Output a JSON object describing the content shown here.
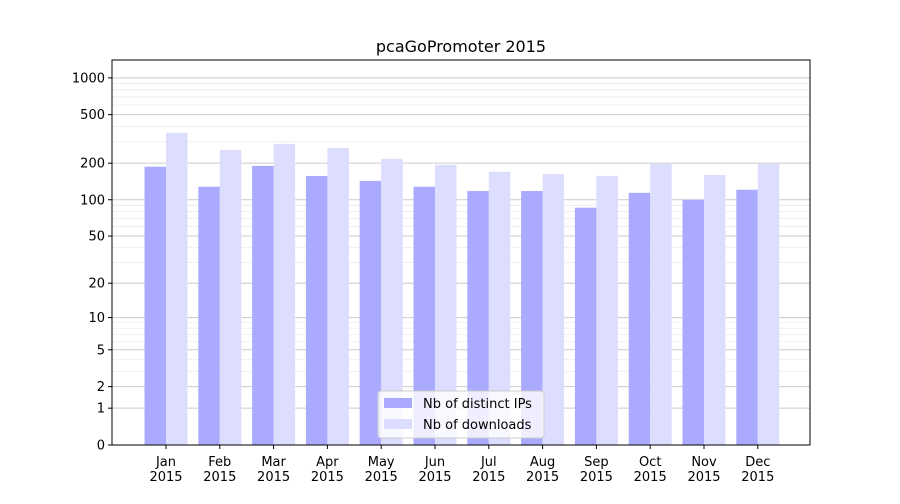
{
  "chart_data": {
    "type": "bar",
    "title": "pcaGoPromoter 2015",
    "xlabel": "",
    "ylabel": "",
    "scale": "log10(1+y)",
    "ylim": [
      0,
      1400
    ],
    "yticks": [
      0,
      1,
      2,
      5,
      10,
      20,
      50,
      100,
      200,
      500,
      1000
    ],
    "grid": true,
    "legend_position": "bottom-center",
    "categories": [
      "Jan\n2015",
      "Feb\n2015",
      "Mar\n2015",
      "Apr\n2015",
      "May\n2015",
      "Jun\n2015",
      "Jul\n2015",
      "Aug\n2015",
      "Sep\n2015",
      "Oct\n2015",
      "Nov\n2015",
      "Dec\n2015"
    ],
    "series": [
      {
        "name": "Nb of distinct IPs",
        "color": "#aaaaff",
        "values": [
          187,
          128,
          190,
          157,
          143,
          128,
          118,
          118,
          86,
          114,
          100,
          121
        ]
      },
      {
        "name": "Nb of downloads",
        "color": "#ddddff",
        "values": [
          355,
          257,
          288,
          267,
          217,
          194,
          170,
          163,
          157,
          198,
          160,
          198
        ]
      }
    ]
  }
}
